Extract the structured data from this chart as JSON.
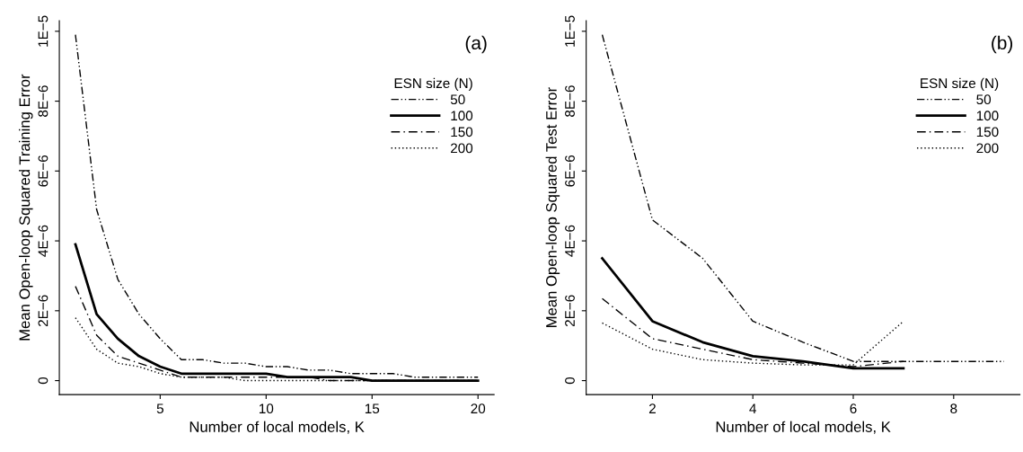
{
  "chart_data": [
    {
      "type": "line",
      "xlabel": "Number of local models, K",
      "ylabel": "Mean Open-loop Squared Training Error",
      "annotations": [
        "(a)"
      ],
      "legend_title": "ESN size (N)",
      "legend": "top right",
      "x": [
        1,
        2,
        3,
        4,
        5,
        6,
        7,
        8,
        9,
        10,
        11,
        12,
        13,
        14,
        15,
        16,
        17,
        18,
        19,
        20
      ],
      "xlim": [
        0.24,
        20.76
      ],
      "xticks": [
        5,
        10,
        15,
        20
      ],
      "ylim": [
        -4e-07,
        1.03e-05
      ],
      "yticks": [
        {
          "value": 0,
          "label": "0"
        },
        {
          "value": 2e-06,
          "label": "2E−6"
        },
        {
          "value": 4e-06,
          "label": "4E−6"
        },
        {
          "value": 6e-06,
          "label": "6E−6"
        },
        {
          "value": 8e-06,
          "label": "8E−6"
        },
        {
          "value": 1e-05,
          "label": "1E−5"
        }
      ],
      "series": [
        {
          "name": "50",
          "color": "#000000",
          "line_style": "dashdotdot",
          "values": [
            9.9e-06,
            4.9e-06,
            2.9e-06,
            1.9e-06,
            1.2e-06,
            6e-07,
            6e-07,
            5e-07,
            5e-07,
            4e-07,
            4e-07,
            3e-07,
            3e-07,
            2e-07,
            2e-07,
            2e-07,
            1e-07,
            1e-07,
            1e-07,
            1e-07
          ]
        },
        {
          "name": "100",
          "color": "#000000",
          "line_style": "solid",
          "values": [
            3.9e-06,
            1.9e-06,
            1.2e-06,
            7e-07,
            4e-07,
            2e-07,
            2e-07,
            2e-07,
            2e-07,
            2e-07,
            1e-07,
            1e-07,
            1e-07,
            1e-07,
            0,
            0,
            0,
            0,
            0,
            0
          ]
        },
        {
          "name": "150",
          "color": "#000000",
          "line_style": "dashdot",
          "values": [
            2.7e-06,
            1.3e-06,
            7e-07,
            5e-07,
            3e-07,
            1e-07,
            1e-07,
            1e-07,
            1e-07,
            1e-07,
            1e-07,
            1e-07,
            0,
            0,
            0,
            0,
            0,
            0,
            0,
            0
          ]
        },
        {
          "name": "200",
          "color": "#000000",
          "line_style": "dotted",
          "values": [
            1.8e-06,
            9e-07,
            5e-07,
            4e-07,
            2e-07,
            1e-07,
            1e-07,
            1e-07,
            0,
            0,
            0,
            0,
            0,
            0,
            0,
            0,
            0,
            0,
            0,
            0
          ]
        }
      ]
    },
    {
      "type": "line",
      "xlabel": "Number of local models, K",
      "ylabel": "Mean Open-loop Squared Test Error",
      "annotations": [
        "(b)"
      ],
      "legend_title": "ESN size (N)",
      "legend": "top right",
      "xlim": [
        0.68,
        9.32
      ],
      "xticks": [
        2,
        4,
        6,
        8
      ],
      "ylim": [
        -4e-07,
        1.03e-05
      ],
      "yticks": [
        {
          "value": 0,
          "label": "0"
        },
        {
          "value": 2e-06,
          "label": "2E−6"
        },
        {
          "value": 4e-06,
          "label": "4E−6"
        },
        {
          "value": 6e-06,
          "label": "6E−6"
        },
        {
          "value": 8e-06,
          "label": "8E−6"
        },
        {
          "value": 1e-05,
          "label": "1E−5"
        }
      ],
      "series": [
        {
          "name": "50",
          "color": "#000000",
          "line_style": "dashdotdot",
          "x": [
            1,
            2,
            3,
            4,
            5,
            6,
            7,
            8,
            9
          ],
          "values": [
            9.9e-06,
            4.6e-06,
            3.5e-06,
            1.7e-06,
            1.1e-06,
            5.5e-07,
            5.5e-07,
            5.5e-07,
            5.5e-07
          ]
        },
        {
          "name": "100",
          "color": "#000000",
          "line_style": "solid",
          "x": [
            1,
            2,
            3,
            4,
            5,
            6,
            7
          ],
          "values": [
            3.5e-06,
            1.7e-06,
            1.1e-06,
            7e-07,
            5.5e-07,
            3.5e-07,
            3.5e-07
          ]
        },
        {
          "name": "150",
          "color": "#000000",
          "line_style": "dashdot",
          "x": [
            1,
            2,
            3,
            4,
            5,
            6,
            7
          ],
          "values": [
            2.35e-06,
            1.2e-06,
            9e-07,
            6e-07,
            5e-07,
            4e-07,
            5.5e-07
          ]
        },
        {
          "name": "200",
          "color": "#000000",
          "line_style": "dotted",
          "x": [
            1,
            2,
            3,
            4,
            5,
            6,
            7
          ],
          "values": [
            1.65e-06,
            9e-07,
            6e-07,
            5e-07,
            4.5e-07,
            4.5e-07,
            1.7e-06
          ]
        }
      ]
    }
  ]
}
